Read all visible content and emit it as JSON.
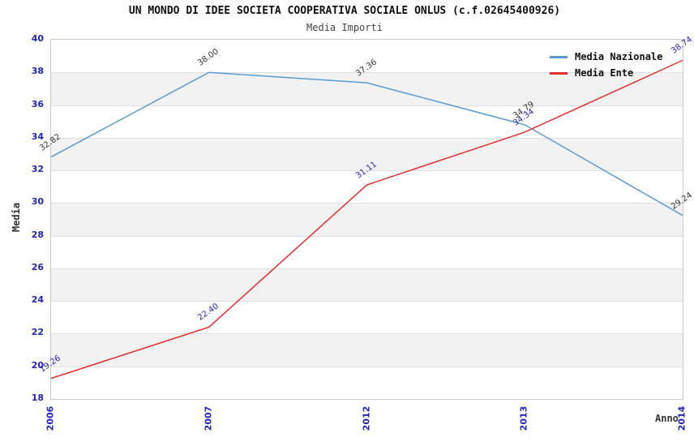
{
  "header": {
    "title": "UN MONDO DI IDEE SOCIETA COOPERATIVA SOCIALE ONLUS (c.f.02645400926)",
    "subtitle": "Media Importi"
  },
  "chart_data": {
    "type": "line",
    "title": "UN MONDO DI IDEE SOCIETA COOPERATIVA SOCIALE ONLUS (c.f.02645400926)",
    "subtitle": "Media Importi",
    "categories": [
      "2006",
      "2007",
      "2012",
      "2013",
      "2014"
    ],
    "series": [
      {
        "name": "Media Nazionale",
        "color": "#5b9bd5",
        "label_color": "#333333",
        "values": [
          32.82,
          38.0,
          37.36,
          34.79,
          29.24
        ]
      },
      {
        "name": "Media Ente",
        "color": "#e62e2e",
        "label_color": "#2323cc",
        "values": [
          19.26,
          22.4,
          31.11,
          34.34,
          38.74
        ]
      }
    ],
    "xlabel": "Anno",
    "ylabel": "Media",
    "ylim": [
      18,
      40
    ],
    "ytick_step": 2,
    "grid": "horizontal-bands",
    "legend_position": "top-right"
  },
  "colors": {
    "tick_label": "#2323cc",
    "band_fill": "#f2f2f2",
    "gridline": "#e0e0e0",
    "plot_border": "#c9c9c9",
    "background": "#ffffff"
  }
}
